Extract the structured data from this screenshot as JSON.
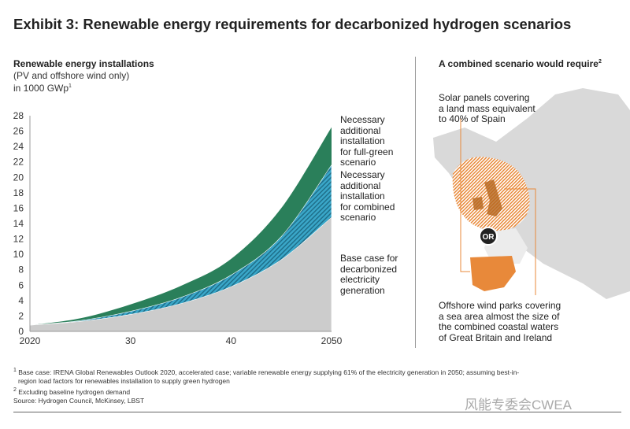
{
  "title": "Exhibit 3: Renewable energy requirements for decarbonized hydrogen scenarios",
  "left_panel": {
    "heading": "Renewable energy installations",
    "sub1": "(PV and offshore wind only)",
    "sub2": "in 1000 GWp",
    "sub2_sup": "1"
  },
  "right_panel": {
    "heading": "A combined scenario would require",
    "heading_sup": "2",
    "solar_text": [
      "Solar panels covering",
      "a land mass equivalent",
      "to 40% of Spain"
    ],
    "or_label": "OR",
    "wind_text": [
      "Offshore wind parks covering",
      "a sea area almost the size of",
      "the combined coastal waters",
      "of Great Britain and Ireland"
    ],
    "colors": {
      "orange": "#e8893a",
      "land": "#d9d9d9"
    }
  },
  "chart_data": {
    "type": "area",
    "stacked": false,
    "x": [
      2020,
      2025,
      2030,
      2035,
      2040,
      2045,
      2050
    ],
    "x_ticks": [
      "2020",
      "30",
      "40",
      "2050"
    ],
    "y_ticks": [
      "0",
      "2",
      "4",
      "6",
      "8",
      "10",
      "12",
      "14",
      "16",
      "18",
      "20",
      "22",
      "24",
      "26",
      "28"
    ],
    "ylim": [
      0,
      28
    ],
    "xlim": [
      2020,
      2050
    ],
    "grid": false,
    "series": [
      {
        "name": "Necessary additional installation for full-green scenario",
        "values": [
          0.8,
          1.7,
          3.5,
          5.9,
          9.4,
          16.0,
          26.5
        ],
        "color": "#2a7f5a"
      },
      {
        "name": "Necessary additional installation for combined scenario",
        "values": [
          0.8,
          1.4,
          2.6,
          4.4,
          7.3,
          12.3,
          21.6
        ],
        "color": "#3aa7c9",
        "pattern": "hatched"
      },
      {
        "name": "Base case for decarbonized electricity generation",
        "values": [
          0.8,
          1.3,
          2.2,
          3.6,
          5.8,
          9.3,
          14.8
        ],
        "color": "#cccccc"
      }
    ],
    "labels": [
      [
        "Necessary",
        "additional",
        "installation",
        "for full-green",
        "scenario"
      ],
      [
        "Necessary",
        "additional",
        "installation",
        "for combined",
        "scenario"
      ],
      [
        "Base case for",
        "decarbonized",
        "electricity",
        "generation"
      ]
    ]
  },
  "footnotes": {
    "f1_mark": "1",
    "f1": "Base case: IRENA Global Renewables Outlook 2020, accelerated case; variable renewable energy supplying 61% of the electricity generation in 2050; assuming best-in-",
    "f1b": "region load factors for renewables installation to supply green hydrogen",
    "f2_mark": "2",
    "f2": "Excluding baseline hydrogen demand",
    "source": "Source: Hydrogen Council, McKinsey, LBST"
  },
  "watermark": "风能专委会CWEA"
}
